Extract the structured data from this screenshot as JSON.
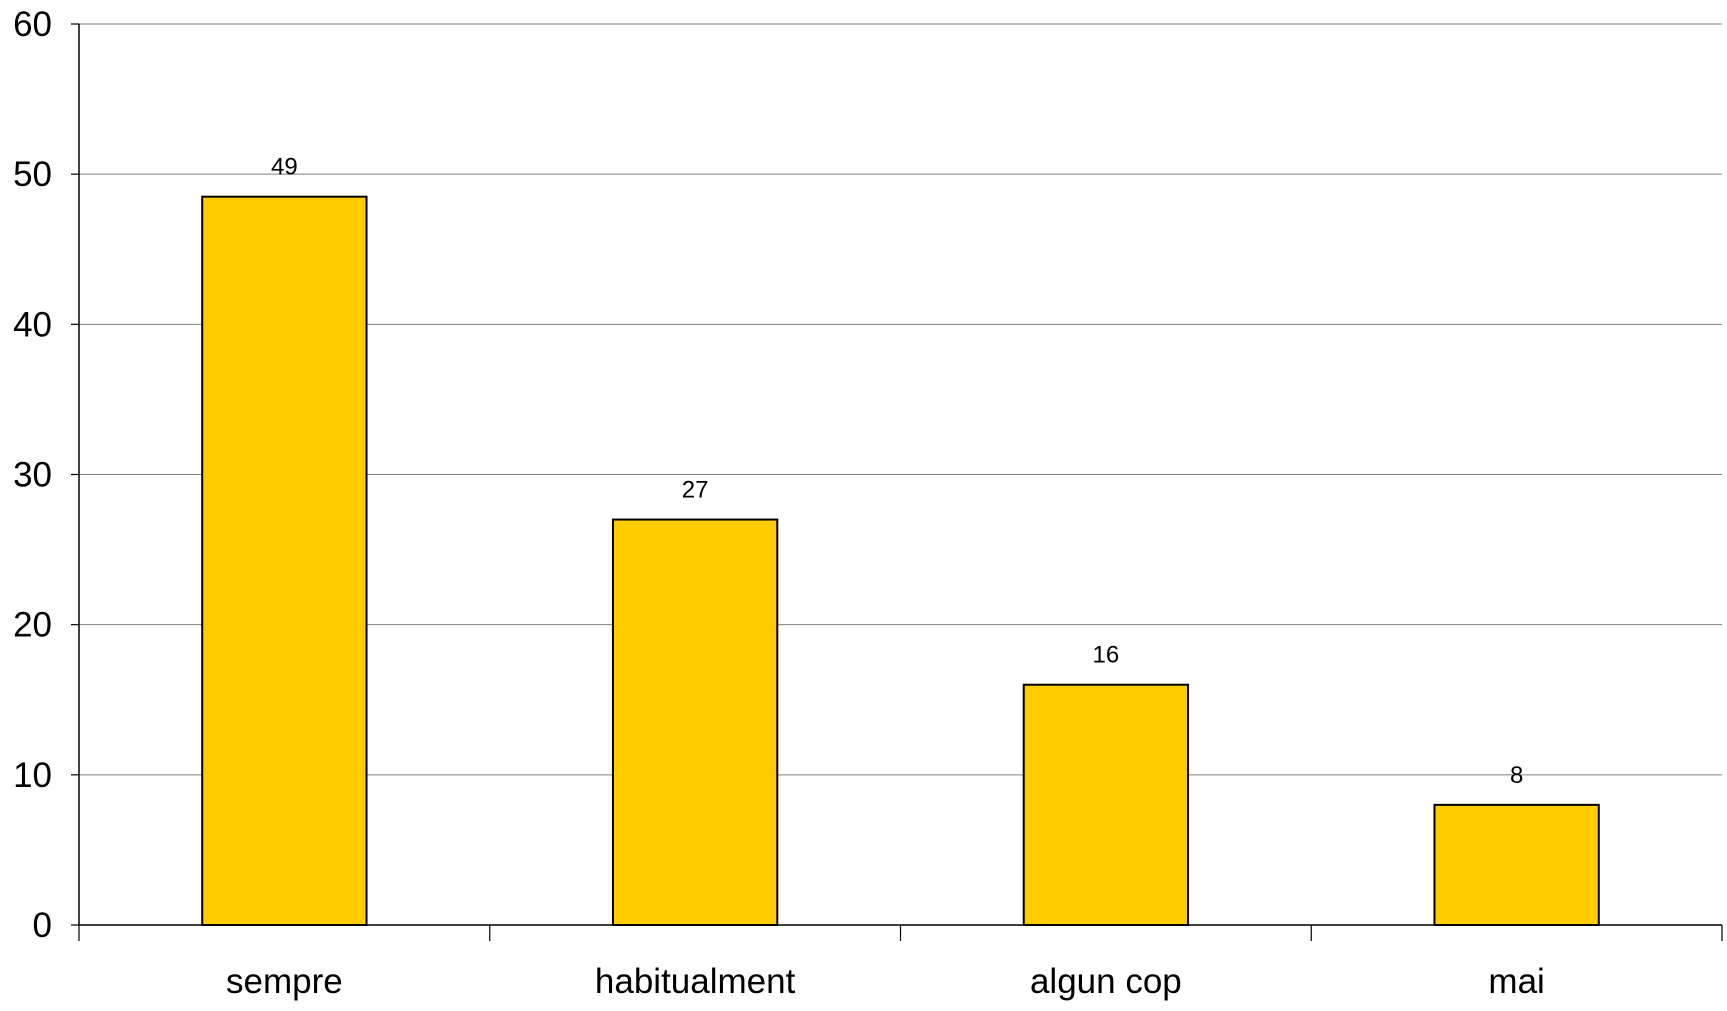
{
  "chart_data": {
    "type": "bar",
    "title": "",
    "xlabel": "",
    "ylabel": "",
    "categories": [
      "sempre",
      "habitualment",
      "algun cop",
      "mai"
    ],
    "values": [
      48.5,
      27,
      16,
      8
    ],
    "data_labels": [
      "49",
      "27",
      "16",
      "8"
    ],
    "ylim": [
      0,
      60
    ],
    "yticks": [
      0,
      10,
      20,
      30,
      40,
      50,
      60
    ],
    "ytick_labels": [
      "0",
      "10",
      "20",
      "30",
      "40",
      "50",
      "60"
    ],
    "grid": true,
    "legend": "none",
    "colors": {
      "bar_fill": "#FFCC00",
      "bar_stroke": "#000000",
      "grid": "#808080",
      "axis": "#000000",
      "text": "#000000"
    }
  }
}
